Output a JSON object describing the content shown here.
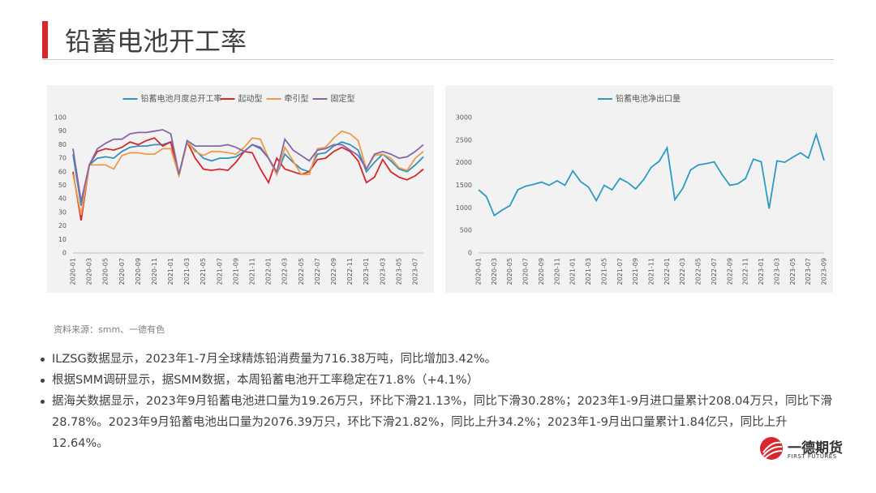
{
  "header": {
    "title": "铅蓄电池开工率"
  },
  "chart_data": [
    {
      "type": "line",
      "categories": [
        "2020-01",
        null,
        "2020-03",
        null,
        "2020-05",
        null,
        "2020-07",
        null,
        "2020-09",
        null,
        "2020-11",
        null,
        "2021-01",
        null,
        "2021-03",
        null,
        "2021-05",
        null,
        "2021-07",
        null,
        "2021-09",
        null,
        "2021-11",
        null,
        "2022-01",
        null,
        "2022-03",
        null,
        "2022-05",
        null,
        "2022-07",
        null,
        "2022-09",
        null,
        "2022-11",
        null,
        "2023-01",
        null,
        "2023-03",
        null,
        "2023-05",
        null,
        "2023-07",
        null
      ],
      "series": [
        {
          "name": "铅蓄电池月度总开工率",
          "color": "#2e92c2",
          "values": [
            73,
            35,
            65,
            70,
            71,
            70,
            75,
            78,
            79,
            79,
            80,
            80,
            82,
            58,
            82,
            76,
            70,
            68,
            70,
            70,
            71,
            75,
            80,
            77,
            70,
            58,
            73,
            67,
            62,
            60,
            73,
            74,
            79,
            82,
            80,
            76,
            60,
            67,
            73,
            68,
            62,
            60,
            65,
            71
          ]
        },
        {
          "name": "起动型",
          "color": "#d9262c",
          "values": [
            60,
            24,
            65,
            75,
            77,
            76,
            78,
            82,
            80,
            83,
            85,
            79,
            82,
            57,
            82,
            70,
            62,
            61,
            62,
            61,
            67,
            75,
            74,
            62,
            52,
            70,
            62,
            60,
            58,
            60,
            69,
            70,
            75,
            78,
            75,
            68,
            52,
            56,
            69,
            60,
            56,
            54,
            57,
            62
          ]
        },
        {
          "name": "牵引型",
          "color": "#ef9a45",
          "values": [
            58,
            28,
            65,
            65,
            65,
            62,
            72,
            74,
            74,
            73,
            73,
            77,
            77,
            57,
            82,
            75,
            72,
            75,
            75,
            74,
            73,
            78,
            85,
            84,
            70,
            58,
            78,
            68,
            58,
            58,
            77,
            78,
            85,
            90,
            88,
            83,
            62,
            72,
            73,
            70,
            63,
            61,
            70,
            75
          ]
        },
        {
          "name": "固定型",
          "color": "#8566a8",
          "values": [
            77,
            38,
            65,
            77,
            81,
            84,
            84,
            88,
            89,
            89,
            90,
            91,
            88,
            58,
            83,
            79,
            79,
            79,
            79,
            80,
            78,
            75,
            80,
            78,
            70,
            60,
            84,
            76,
            72,
            68,
            76,
            77,
            80,
            80,
            76,
            72,
            62,
            73,
            75,
            73,
            70,
            71,
            75,
            80
          ]
        }
      ],
      "ylim": [
        0,
        100
      ],
      "yticks": [
        0,
        10,
        20,
        30,
        40,
        50,
        60,
        70,
        80,
        90,
        100
      ]
    },
    {
      "type": "line",
      "categories": [
        "2020-01",
        null,
        "2020-03",
        null,
        "2020-05",
        null,
        "2020-07",
        null,
        "2020-09",
        null,
        "2020-11",
        null,
        "2021-01",
        null,
        "2021-03",
        null,
        "2021-05",
        null,
        "2021-07",
        null,
        "2021-09",
        null,
        "2021-11",
        null,
        "2022-01",
        null,
        "2022-03",
        null,
        "2022-05",
        null,
        "2022-07",
        null,
        "2022-09",
        null,
        "2022-11",
        null,
        "2023-01",
        null,
        "2023-03",
        null,
        "2023-05",
        null,
        "2023-07",
        null,
        "2023-09"
      ],
      "series": [
        {
          "name": "铅蓄电池净出口量",
          "color": "#2a9bc4",
          "values": [
            1400,
            1250,
            830,
            950,
            1050,
            1400,
            1480,
            1520,
            1570,
            1500,
            1600,
            1500,
            1820,
            1580,
            1460,
            1160,
            1500,
            1400,
            1650,
            1560,
            1420,
            1620,
            1900,
            2030,
            2330,
            1180,
            1430,
            1840,
            1950,
            1980,
            2020,
            1740,
            1500,
            1530,
            1650,
            2080,
            2020,
            980,
            2040,
            2010,
            2120,
            2220,
            2100,
            2630,
            2050
          ]
        }
      ],
      "ylim": [
        0,
        3000
      ],
      "yticks": [
        0,
        500,
        1000,
        1500,
        2000,
        2500,
        3000
      ]
    }
  ],
  "source": "资料来源：smm、一德有色",
  "bullets": [
    "ILZSG数据显示，2023年1-7月全球精炼铅消费量为716.38万吨，同比增加3.42%。",
    "根据SMM调研显示，据SMM数据，本周铅蓄电池开工率稳定在71.8%（+4.1%）",
    "据海关数据显示，2023年9月铅蓄电池进口量为19.26万只，环比下滑21.13%，同比下滑30.28%；2023年1-9月进口量累计208.04万只，同比下滑28.78%。2023年9月铅蓄电池出口量为2076.39万只，环比下滑21.82%，同比上升34.2%；2023年1-9月出口量累计1.84亿只，同比上升12.64%。"
  ],
  "logo": {
    "name": "一德期货",
    "english": "FIRST FUTURES"
  }
}
